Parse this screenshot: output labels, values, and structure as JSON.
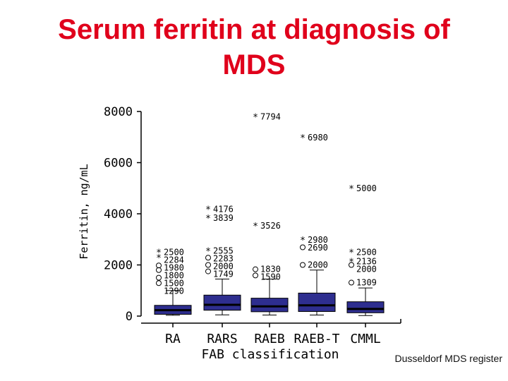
{
  "slide": {
    "title_line1": "Serum ferritin at diagnosis of",
    "title_line2": "MDS",
    "credit": "Dusseldorf MDS register"
  },
  "chart_data": {
    "type": "box",
    "ylabel": "Ferritin, ng/mL",
    "xlabel": "FAB classification",
    "ylim": [
      0,
      8000
    ],
    "yticks": [
      0,
      2000,
      4000,
      6000,
      8000
    ],
    "grid": false,
    "box_color": "#2e2e8f",
    "categories": [
      "RA",
      "RARS",
      "RAEB",
      "RAEB-T",
      "CMML"
    ],
    "boxes": [
      {
        "category": "RA",
        "whisker_low": 30,
        "q1": 70,
        "median": 230,
        "q3": 420,
        "whisker_high": 1000,
        "outliers_circle": [
          1290,
          1500,
          1800,
          1980
        ],
        "outliers_star": [
          2284,
          2500
        ],
        "labels": [
          "2500",
          "2284",
          "1980",
          "1800",
          "1500",
          "1290"
        ]
      },
      {
        "category": "RARS",
        "whisker_low": 50,
        "q1": 230,
        "median": 440,
        "q3": 820,
        "whisker_high": 1450,
        "outliers_circle": [
          1749,
          2000,
          2283
        ],
        "outliers_star": [
          2555,
          3839,
          4176
        ],
        "labels": [
          "4176",
          "3839",
          "2555",
          "2283",
          "2000",
          "1749"
        ]
      },
      {
        "category": "RAEB",
        "whisker_low": 40,
        "q1": 170,
        "median": 380,
        "q3": 700,
        "whisker_high": 1450,
        "outliers_circle": [
          1590,
          1830
        ],
        "outliers_star": [
          3526,
          7794
        ],
        "labels": [
          "7794",
          "3526",
          "1830",
          "1590"
        ]
      },
      {
        "category": "RAEB-T",
        "whisker_low": 40,
        "q1": 180,
        "median": 420,
        "q3": 900,
        "whisker_high": 1800,
        "outliers_circle": [
          2000,
          2690
        ],
        "outliers_star": [
          2980,
          6980
        ],
        "labels": [
          "6980",
          "2980",
          "2690",
          "2000"
        ]
      },
      {
        "category": "CMML",
        "whisker_low": 20,
        "q1": 130,
        "median": 280,
        "q3": 560,
        "whisker_high": 1100,
        "outliers_circle": [
          1309,
          2000
        ],
        "outliers_star": [
          2136,
          2500,
          5000
        ],
        "labels": [
          "5000",
          "2500",
          "2136",
          "2000",
          "1309"
        ]
      }
    ]
  }
}
